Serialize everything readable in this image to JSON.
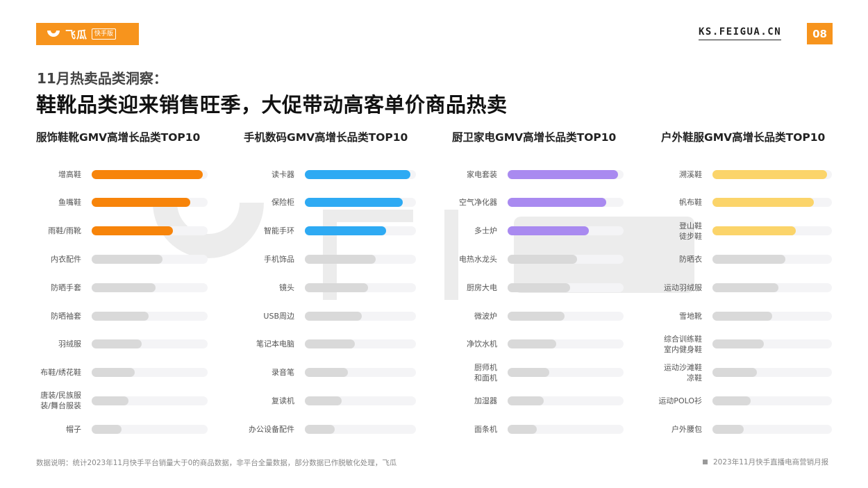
{
  "brand": {
    "name": "飞瓜",
    "tag": "快手版",
    "site": "KS.FEIGUA.CN",
    "page": "08",
    "accent": "#f7941d"
  },
  "headline": {
    "sub": "11月热卖品类洞察：",
    "main": "鞋靴品类迎来销售旺季，大促带动高客单价商品热卖"
  },
  "footer": {
    "note": "数据说明：统计2023年11月快手平台销量大于0的商品数据，非平台全量数据，部分数据已作脱敏化处理，飞瓜",
    "report": "2023年11月快手直播电商营销月报"
  },
  "chart_data": [
    {
      "type": "bar",
      "title": "服饰鞋靴GMV高增长品类TOP10",
      "color": "#f7840a",
      "highlight_count": 3,
      "categories": [
        "增高鞋",
        "鱼嘴鞋",
        "雨鞋/雨靴",
        "内衣配件",
        "防晒手套",
        "防晒袖套",
        "羽绒服",
        "布鞋/绣花鞋",
        "唐装/民族服装/舞台服装",
        "帽子"
      ],
      "values": [
        96,
        85,
        70,
        61,
        55,
        49,
        43,
        37,
        32,
        26
      ]
    },
    {
      "type": "bar",
      "title": "手机数码GMV高增长品类TOP10",
      "color": "#2eaaf3",
      "highlight_count": 3,
      "categories": [
        "读卡器",
        "保险柜",
        "智能手环",
        "手机饰品",
        "镜头",
        "USB周边",
        "笔记本电脑",
        "录音笔",
        "复读机",
        "办公设备配件"
      ],
      "values": [
        95,
        88,
        73,
        64,
        57,
        51,
        45,
        39,
        33,
        27
      ]
    },
    {
      "type": "bar",
      "title": "厨卫家电GMV高增长品类TOP10",
      "color": "#a98af0",
      "highlight_count": 3,
      "categories": [
        "家电套装",
        "空气净化器",
        "多士炉",
        "电热水龙头",
        "厨房大电",
        "微波炉",
        "净饮水机",
        "厨师机和面机",
        "加湿器",
        "面条机"
      ],
      "values": [
        95,
        85,
        70,
        60,
        54,
        49,
        42,
        36,
        31,
        25
      ]
    },
    {
      "type": "bar",
      "title": "户外鞋服GMV高增长品类TOP10",
      "color": "#fbd46a",
      "highlight_count": 3,
      "categories": [
        "溯溪鞋",
        "帆布鞋",
        "登山鞋徒步鞋",
        "防晒衣",
        "运动羽绒服",
        "雪地靴",
        "综合训练鞋室内健身鞋",
        "运动沙滩鞋凉鞋",
        "运动POLO衫",
        "户外腰包"
      ],
      "values": [
        96,
        85,
        70,
        61,
        55,
        50,
        43,
        37,
        32,
        26
      ]
    }
  ]
}
